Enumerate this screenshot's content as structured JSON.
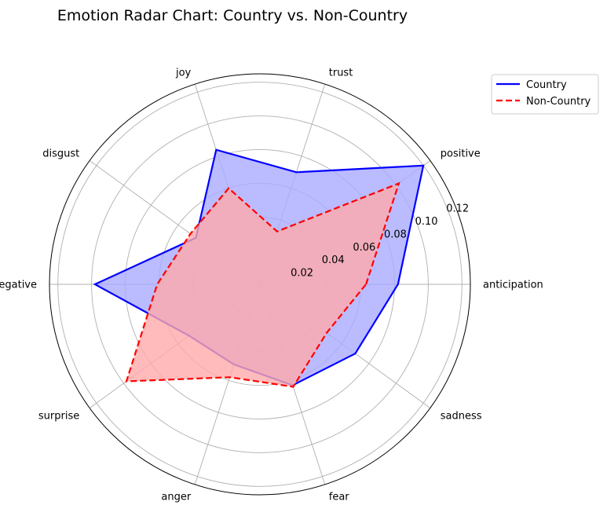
{
  "chart_data": {
    "type": "radar",
    "title": "Emotion Radar Chart: Country vs. Non-Country",
    "categories": [
      "anticipation",
      "positive",
      "trust",
      "joy",
      "disgust",
      "negative",
      "surprise",
      "anger",
      "fear",
      "sadness"
    ],
    "series": [
      {
        "name": "Country",
        "values": [
          0.082,
          0.12,
          0.07,
          0.084,
          0.047,
          0.098,
          0.052,
          0.05,
          0.063,
          0.07
        ],
        "color": "#0000ff",
        "fill": "#aaaaff",
        "line_style": "solid"
      },
      {
        "name": "Non-Country",
        "values": [
          0.063,
          0.102,
          0.033,
          0.06,
          0.051,
          0.061,
          0.098,
          0.058,
          0.064,
          0.049
        ],
        "color": "#ff0000",
        "fill": "#ffaaaa",
        "line_style": "dashed"
      }
    ],
    "r_ticks": [
      0.02,
      0.04,
      0.06,
      0.08,
      0.1,
      0.12
    ],
    "r_tick_labels": [
      "0.02",
      "0.04",
      "0.06",
      "0.08",
      "0.10",
      "0.12"
    ],
    "rlim": [
      0,
      0.125
    ],
    "grid": true,
    "legend_position": "top-right"
  }
}
